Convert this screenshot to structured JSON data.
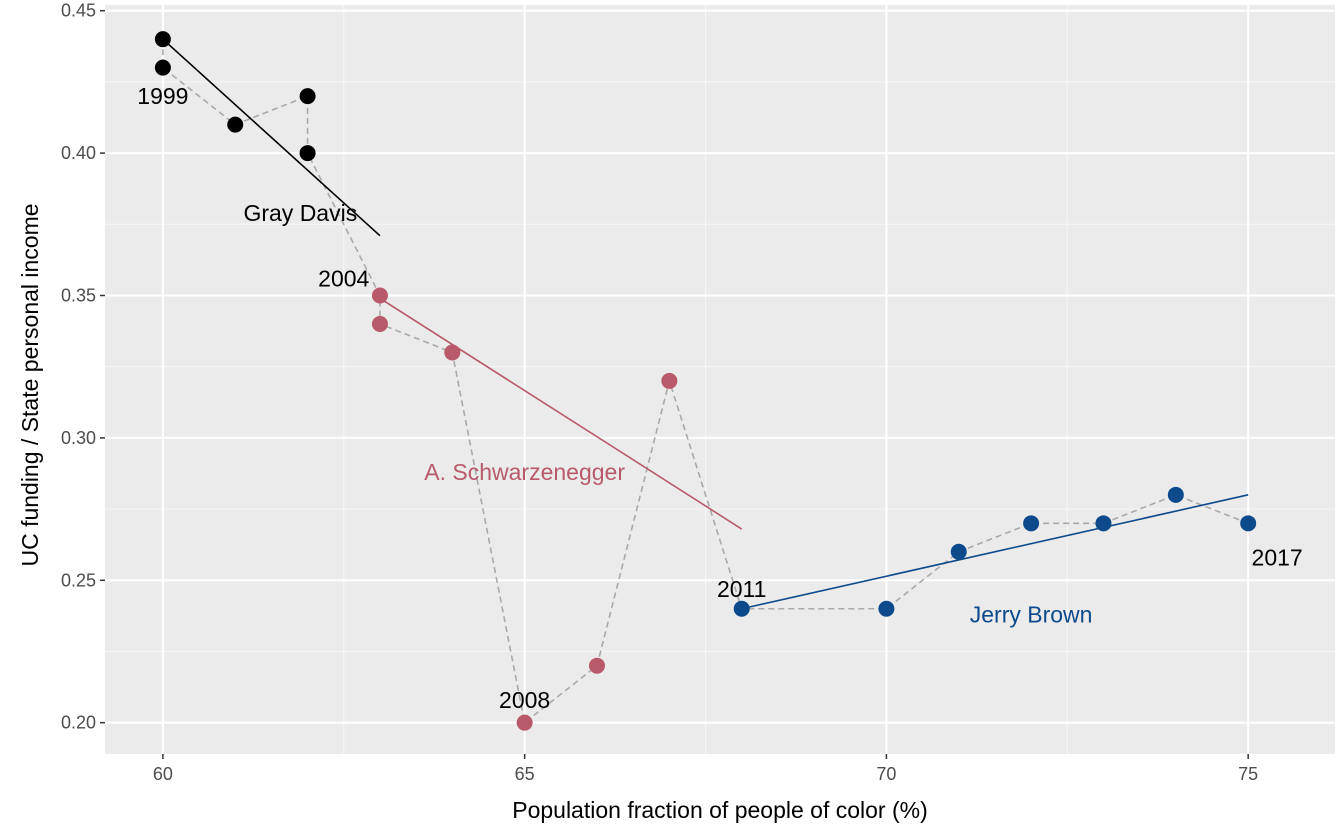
{
  "chart_data": {
    "type": "scatter",
    "xlabel": "Population fraction of people of color (%)",
    "ylabel": "UC funding / State  personal income",
    "xlim": [
      59.2,
      76.2
    ],
    "ylim": [
      0.189,
      0.452
    ],
    "x_ticks": [
      60,
      65,
      70,
      75
    ],
    "x_tick_labels": [
      "60",
      "65",
      "70",
      "75"
    ],
    "y_ticks": [
      0.2,
      0.25,
      0.3,
      0.35,
      0.4,
      0.45
    ],
    "y_tick_labels": [
      "0.20",
      "0.25",
      "0.30",
      "0.35",
      "0.40",
      "0.45"
    ],
    "grid": true,
    "connector_path": [
      [
        60,
        0.44
      ],
      [
        60,
        0.43
      ],
      [
        61,
        0.41
      ],
      [
        62,
        0.42
      ],
      [
        62,
        0.4
      ],
      [
        63,
        0.35
      ],
      [
        63,
        0.34
      ],
      [
        64,
        0.33
      ],
      [
        65,
        0.2
      ],
      [
        66,
        0.22
      ],
      [
        67,
        0.32
      ],
      [
        68,
        0.24
      ],
      [
        70,
        0.24
      ],
      [
        71,
        0.26
      ],
      [
        72,
        0.27
      ],
      [
        73,
        0.27
      ],
      [
        74,
        0.28
      ],
      [
        75,
        0.27
      ]
    ],
    "series": [
      {
        "color": "#000000",
        "points": [
          [
            60,
            0.44
          ],
          [
            60,
            0.43
          ],
          [
            61,
            0.41
          ],
          [
            62,
            0.42
          ],
          [
            62,
            0.4
          ]
        ],
        "trend": [
          [
            60,
            0.44
          ],
          [
            63,
            0.371
          ]
        ],
        "label": {
          "text": "Gray Davis",
          "x": 61.9,
          "y": 0.379
        }
      },
      {
        "color": "#b95a6b",
        "points": [
          [
            63,
            0.35
          ],
          [
            63,
            0.34
          ],
          [
            64,
            0.33
          ],
          [
            65,
            0.2
          ],
          [
            66,
            0.22
          ],
          [
            67,
            0.32
          ]
        ],
        "trend": [
          [
            63,
            0.349
          ],
          [
            68,
            0.268
          ]
        ],
        "label": {
          "text": "A. Schwarzenegger",
          "x": 65.0,
          "y": 0.288
        }
      },
      {
        "color": "#0c4a8c",
        "points": [
          [
            68,
            0.24
          ],
          [
            70,
            0.24
          ],
          [
            71,
            0.26
          ],
          [
            72,
            0.27
          ],
          [
            73,
            0.27
          ],
          [
            74,
            0.28
          ],
          [
            75,
            0.27
          ]
        ],
        "trend": [
          [
            68,
            0.24
          ],
          [
            75,
            0.28
          ]
        ],
        "label": {
          "text": "Jerry Brown",
          "x": 72.0,
          "y": 0.238
        }
      }
    ],
    "annotations": [
      {
        "text": "1999",
        "x": 60.0,
        "y": 0.42
      },
      {
        "text": "2004",
        "x": 62.5,
        "y": 0.356
      },
      {
        "text": "2008",
        "x": 65.0,
        "y": 0.208
      },
      {
        "text": "2011",
        "x": 68.0,
        "y": 0.247
      },
      {
        "text": "2017",
        "x": 75.4,
        "y": 0.258
      }
    ]
  }
}
